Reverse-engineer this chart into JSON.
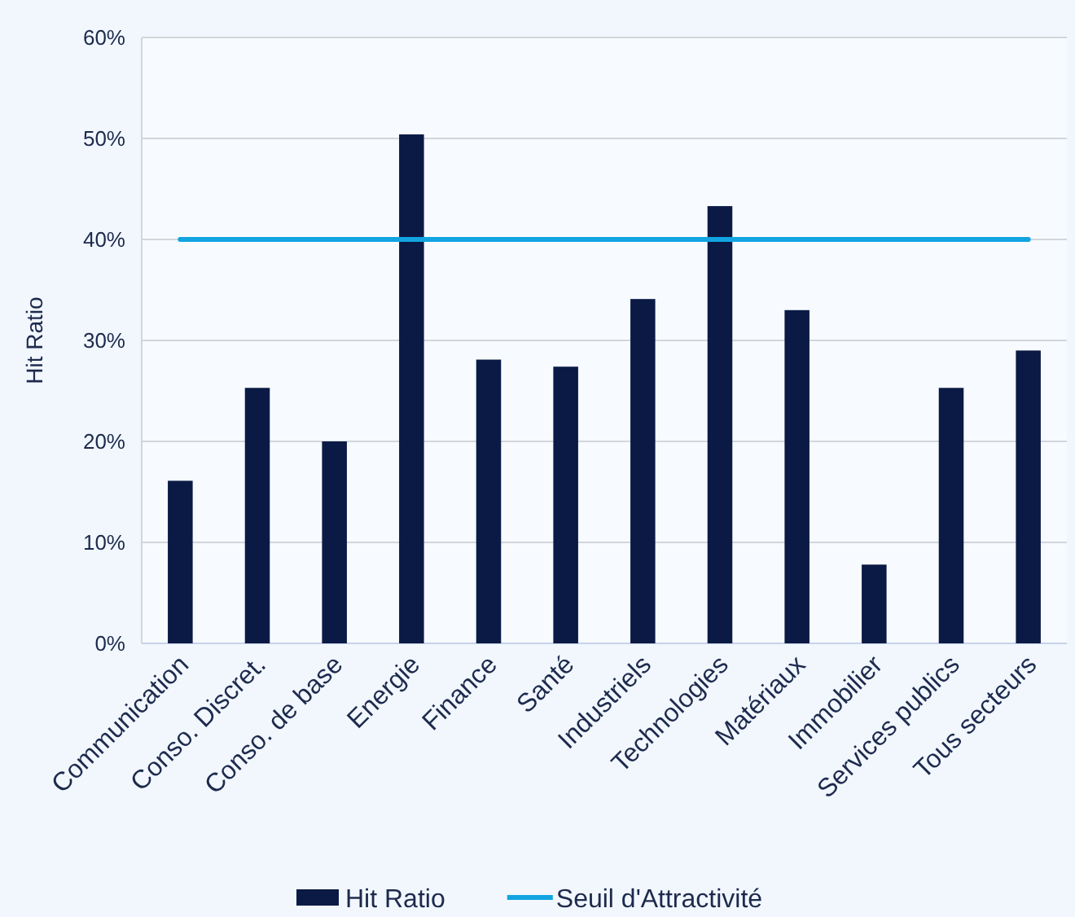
{
  "chart_data": {
    "type": "bar",
    "ylabel": "Hit Ratio",
    "categories": [
      "Communication",
      "Conso. Discret.",
      "Conso. de base",
      "Energie",
      "Finance",
      "Santé",
      "Industriels",
      "Technologies",
      "Matériaux",
      "Immobilier",
      "Services publics",
      "Tous secteurs"
    ],
    "series": [
      {
        "name": "Hit Ratio",
        "color": "#0b1a45",
        "values": [
          16.1,
          25.3,
          20.0,
          50.4,
          28.1,
          27.4,
          34.1,
          43.3,
          33.0,
          7.8,
          25.3,
          29.0
        ]
      },
      {
        "name": "Seuil d'Attractivité",
        "type": "line",
        "color": "#12a4e0",
        "values": [
          40,
          40,
          40,
          40,
          40,
          40,
          40,
          40,
          40,
          40,
          40,
          40
        ]
      }
    ],
    "ylim": [
      0,
      60
    ],
    "yticks": [
      {
        "value": 0,
        "label": "0%"
      },
      {
        "value": 10,
        "label": "10%"
      },
      {
        "value": 20,
        "label": "20%"
      },
      {
        "value": 30,
        "label": "30%"
      },
      {
        "value": 40,
        "label": "40%"
      },
      {
        "value": 50,
        "label": "50%"
      },
      {
        "value": 60,
        "label": "60%"
      }
    ],
    "grid": "y",
    "legend": "bottom",
    "marker": "none",
    "line_style": "solid"
  }
}
